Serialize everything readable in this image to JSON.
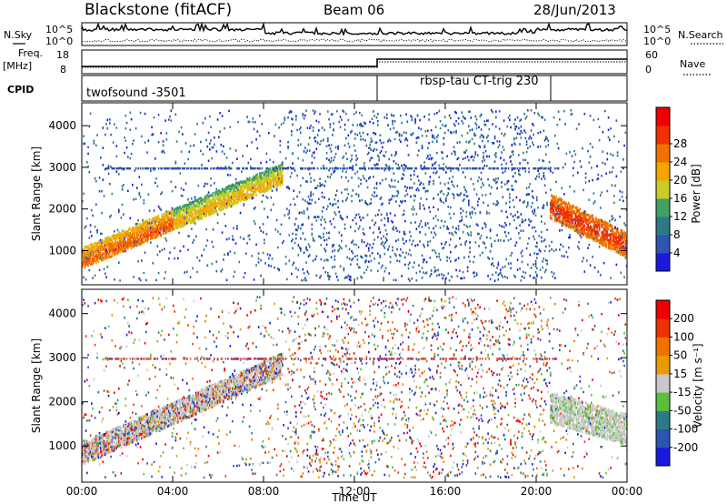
{
  "header": {
    "station": "Blackstone (fitACF)",
    "beam": "Beam 06",
    "date": "28/Jun/2013"
  },
  "top_panels": {
    "nsky_label": "N.Sky",
    "nsky_axis": [
      "10^5",
      "10^0"
    ],
    "nsearch_label": "N.Search",
    "freq_label_1": "Freq.",
    "freq_label_2": "[MHz]",
    "freq_axis": [
      "18",
      "8"
    ],
    "nave_axis": [
      "60",
      "0"
    ],
    "nave_label": "Nave",
    "cpid_label": "CPID",
    "cpid_left": "twofsound -3501",
    "cpid_right": "rbsp-tau CT-trig 230"
  },
  "panels": {
    "ylabel": "Slant Range [km]",
    "xlabel": "Time UT",
    "power_label": "Power [dB]",
    "velocity_label": "Velocity [m s⁻¹]"
  },
  "chart_data": [
    {
      "type": "heatmap",
      "title": "Power",
      "xlabel": "Time UT",
      "ylabel": "Slant Range [km]",
      "x_ticks": [
        "00:00",
        "04:00",
        "08:00",
        "12:00",
        "16:00",
        "20:00",
        "00:00"
      ],
      "xlim_hours": [
        0,
        24
      ],
      "y_ticks": [
        1000,
        2000,
        3000,
        4000
      ],
      "ylim": [
        180,
        4550
      ],
      "colorbar": {
        "label": "Power [dB]",
        "ticks": [
          4,
          8,
          12,
          16,
          20,
          24,
          28
        ],
        "colors": [
          "#1a1adf",
          "#2c55b0",
          "#2c7a86",
          "#3fa163",
          "#c8cc24",
          "#f5a400",
          "#f07000",
          "#f03000",
          "#ee0000"
        ]
      },
      "features": [
        {
          "name": "main band",
          "hours": [
            0,
            8.5
          ],
          "range_km": [
            900,
            2800
          ],
          "power_db": [
            14,
            28
          ]
        },
        {
          "name": "late band",
          "hours": [
            21,
            24
          ],
          "range_km": [
            1000,
            2200
          ],
          "power_db": [
            20,
            30
          ]
        },
        {
          "name": "3000 km echoes",
          "hours": [
            1,
            21
          ],
          "range_km": [
            2950,
            3050
          ],
          "power_db": [
            4,
            10
          ]
        }
      ]
    },
    {
      "type": "heatmap",
      "title": "Velocity",
      "xlabel": "Time UT",
      "ylabel": "Slant Range [km]",
      "x_ticks": [
        "00:00",
        "04:00",
        "08:00",
        "12:00",
        "16:00",
        "20:00",
        "00:00"
      ],
      "xlim_hours": [
        0,
        24
      ],
      "y_ticks": [
        1000,
        2000,
        3000,
        4000
      ],
      "ylim": [
        180,
        4550
      ],
      "colorbar": {
        "label": "Velocity [m s⁻¹]",
        "ticks": [
          200,
          100,
          50,
          15,
          -15,
          -50,
          -100,
          -200
        ],
        "colors": [
          "#1a1adf",
          "#2c55b0",
          "#2c7a86",
          "#5abf3a",
          "#c8c8c8",
          "#e89a00",
          "#f07000",
          "#f03000",
          "#ee0000"
        ]
      },
      "features": [
        {
          "name": "ground scatter band",
          "hours": [
            0,
            8.5
          ],
          "range_km": [
            700,
            2200
          ],
          "velocity": [
            -15,
            15
          ]
        },
        {
          "name": "late ground scatter",
          "hours": [
            20.5,
            24
          ],
          "range_km": [
            1200,
            2300
          ],
          "velocity": [
            -15,
            15
          ]
        }
      ]
    }
  ]
}
